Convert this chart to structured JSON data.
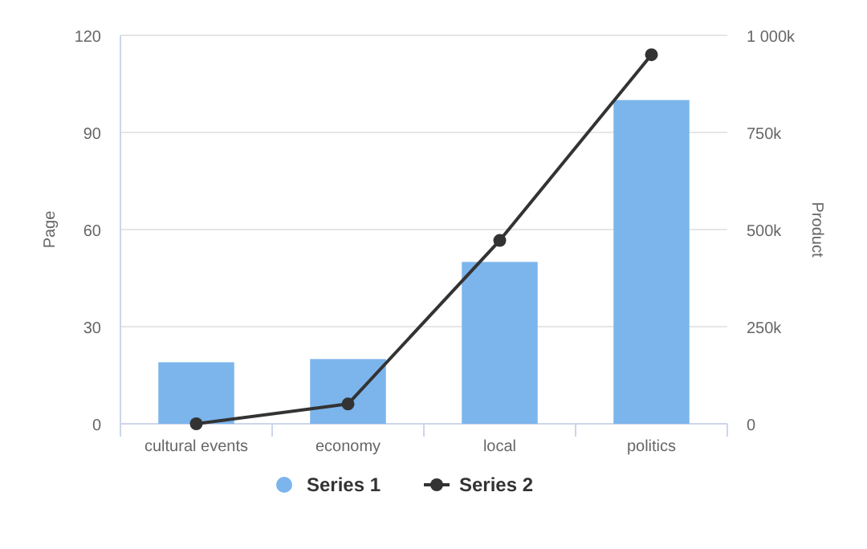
{
  "chart_data": {
    "type": "bar",
    "ylabel": "Page",
    "y2label": "Product",
    "categories": [
      "cultural events",
      "economy",
      "local",
      "politics"
    ],
    "series": [
      {
        "name": "Series 1",
        "color": "#7cb5ec",
        "values": [
          19,
          20,
          50,
          100
        ]
      },
      {
        "name": "Series 2",
        "type": "line",
        "axis": "y2",
        "color": "#333333",
        "values": [
          0,
          51000,
          472000,
          950000
        ]
      }
    ],
    "ylim": [
      0,
      120
    ],
    "yticks": [
      0,
      30,
      60,
      90,
      120
    ],
    "y2lim": [
      0,
      1000000
    ],
    "y2ticks": [
      0,
      {
        "value": 250000,
        "label": "250k"
      },
      {
        "value": 500000,
        "label": "500k"
      },
      {
        "value": 750000,
        "label": "750k"
      },
      {
        "value": 1000000,
        "label": "1 000k"
      }
    ],
    "grid": "y",
    "legend": "bottom",
    "marker": "circle"
  }
}
